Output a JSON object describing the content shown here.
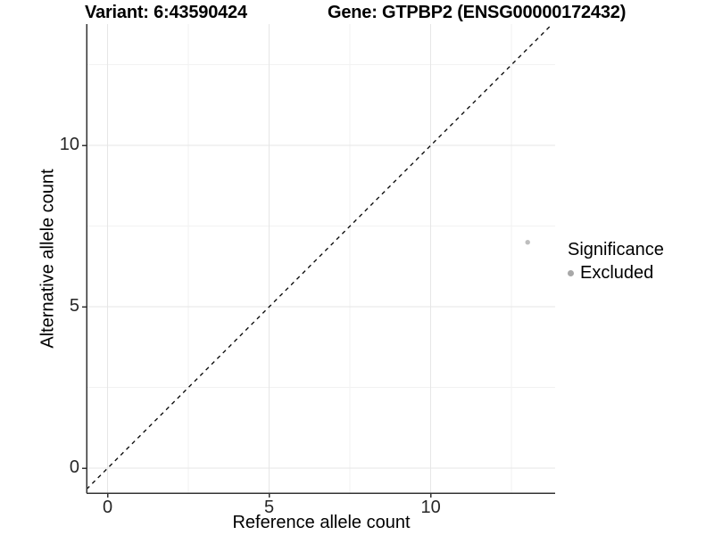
{
  "titles": {
    "variant": "Variant: 6:43590424",
    "gene": "Gene: GTPBP2 (ENSG00000172432)"
  },
  "axes": {
    "x": {
      "label": "Reference allele count",
      "major_ticks": [
        0,
        5,
        10
      ],
      "minor_ticks": [
        2.5,
        7.5,
        12.5
      ],
      "range": [
        -0.65,
        13.85
      ]
    },
    "y": {
      "label": "Alternative allele count",
      "major_ticks": [
        0,
        5,
        10
      ],
      "minor_ticks": [
        2.5,
        7.5,
        12.5
      ],
      "range": [
        -0.77,
        13.76
      ]
    }
  },
  "legend": {
    "title": "Significance",
    "items": [
      {
        "label": "Excluded",
        "marker": "circle-icon",
        "color": "#a8a8a8"
      }
    ]
  },
  "chart_data": {
    "type": "scatter",
    "title_left": "Variant: 6:43590424",
    "title_right": "Gene: GTPBP2 (ENSG00000172432)",
    "xlabel": "Reference allele count",
    "ylabel": "Alternative allele count",
    "xlim": [
      -0.65,
      13.85
    ],
    "ylim": [
      -0.77,
      13.76
    ],
    "x_major_ticks": [
      0,
      5,
      10
    ],
    "x_minor_ticks": [
      2.5,
      7.5,
      12.5
    ],
    "y_major_ticks": [
      0,
      5,
      10
    ],
    "y_minor_ticks": [
      2.5,
      7.5,
      12.5
    ],
    "grid": "major and minor gridlines, very light gray, white background",
    "legend_position": "right",
    "series": [
      {
        "name": "Excluded",
        "points": [
          {
            "x": 13,
            "y": 7
          }
        ],
        "color": "#bebebe"
      }
    ],
    "reference_line": {
      "equation": "y = x",
      "style": "dashed",
      "color": "#000000"
    }
  },
  "colors": {
    "background": "#ffffff",
    "grid_major": "#e6e6e6",
    "grid_minor": "#f2f2f2",
    "axis_line": "#333333",
    "tick_label": "#262626",
    "point": "#bebebe",
    "legend_marker": "#a8a8a8",
    "dashed_line": "#111111"
  }
}
